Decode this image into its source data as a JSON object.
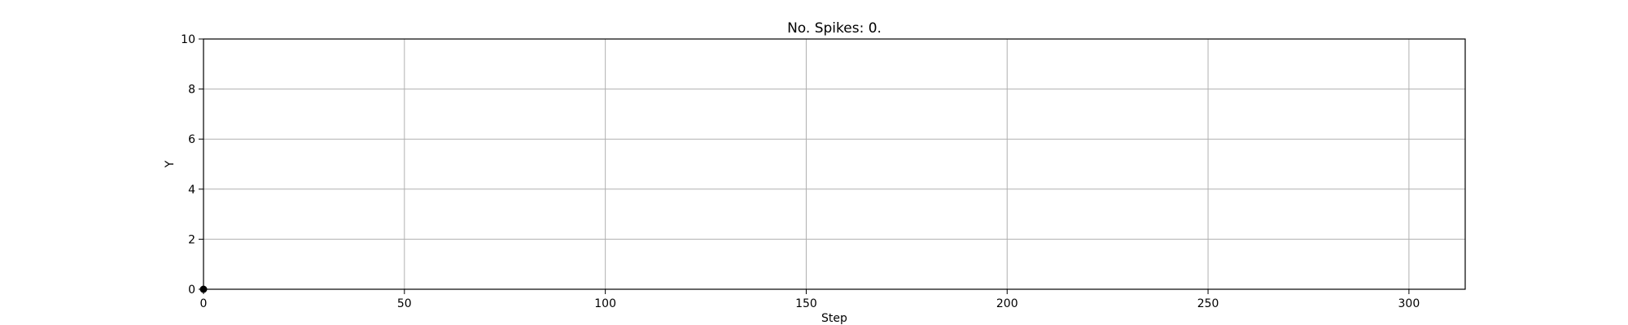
{
  "chart_data": {
    "type": "scatter",
    "title": "No. Spikes: 0.",
    "xlabel": "Step",
    "ylabel": "Y",
    "xlim": [
      0,
      314
    ],
    "ylim": [
      0,
      10
    ],
    "xticks": [
      0,
      50,
      100,
      150,
      200,
      250,
      300
    ],
    "yticks": [
      0,
      2,
      4,
      6,
      8,
      10
    ],
    "grid": true,
    "series": [
      {
        "points": [
          {
            "x": 0,
            "y": 0
          }
        ]
      }
    ],
    "colors": {
      "grid": "#b0b0b0",
      "axes": "#000000",
      "marker": "#000000"
    }
  }
}
